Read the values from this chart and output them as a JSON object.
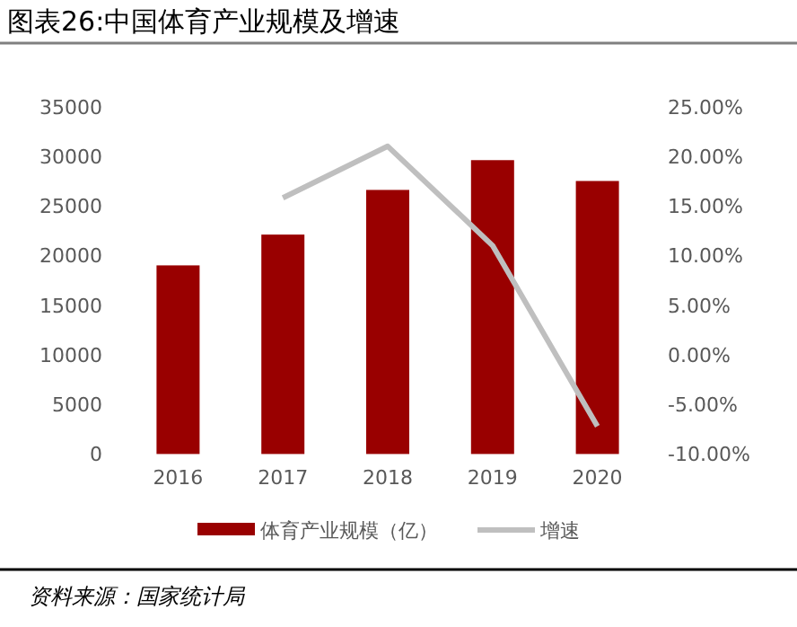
{
  "chart_data": {
    "type": "bar",
    "title": "图表26:中国体育产业规模及增速",
    "categories": [
      "2016",
      "2017",
      "2018",
      "2019",
      "2020"
    ],
    "series": [
      {
        "name": "体育产业规模（亿）",
        "color": "#990000",
        "values": [
          19000,
          22100,
          26600,
          29600,
          27500
        ]
      },
      {
        "name": "增速",
        "type": "line",
        "axis": "y2",
        "color": "#bfbfbf",
        "marker": "none",
        "values": [
          null,
          15.8,
          21.0,
          11.0,
          -7.2
        ]
      }
    ],
    "ylim": [
      0,
      35000
    ],
    "yticks": [
      0,
      5000,
      10000,
      15000,
      20000,
      25000,
      30000,
      35000
    ],
    "y2lim": [
      -10,
      25
    ],
    "y2ticks": [
      {
        "value": -10,
        "label": "-10.00%"
      },
      {
        "value": -5,
        "label": "-5.00%"
      },
      {
        "value": 0,
        "label": "0.00%"
      },
      {
        "value": 5,
        "label": "5.00%"
      },
      {
        "value": 10,
        "label": "10.00%"
      },
      {
        "value": 15,
        "label": "15.00%"
      },
      {
        "value": 20,
        "label": "20.00%"
      },
      {
        "value": 25,
        "label": "25.00%"
      }
    ],
    "legend": "bottom",
    "annotations": [
      "资料来源：国家统计局"
    ]
  }
}
